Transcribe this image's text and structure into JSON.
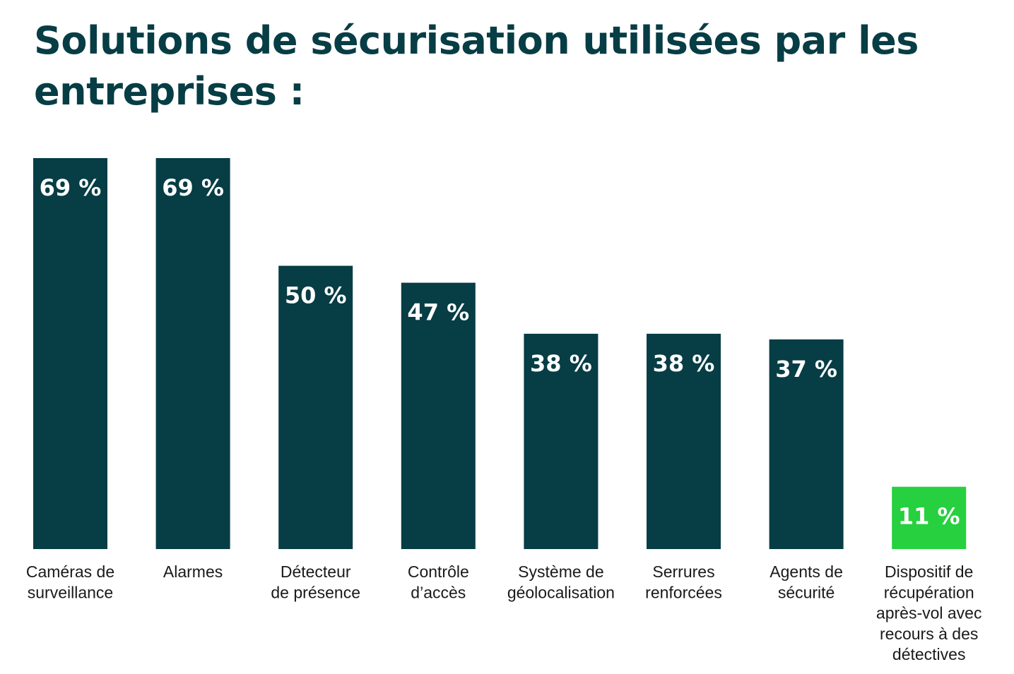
{
  "chart_data": {
    "type": "bar",
    "title": "Solutions de sécurisation utilisées par les entreprises :",
    "xlabel": "",
    "ylabel": "",
    "ylim": [
      0,
      69
    ],
    "grid": false,
    "categories": [
      [
        "Caméras de",
        "surveillance"
      ],
      [
        "Alarmes"
      ],
      [
        "Détecteur",
        "de présence"
      ],
      [
        "Contrôle",
        "d’accès"
      ],
      [
        "Système de",
        "géolocalisation"
      ],
      [
        "Serrures",
        "renforcées"
      ],
      [
        "Agents de",
        "sécurité"
      ],
      [
        "Dispositif de",
        "récupération",
        "après-vol avec",
        "recours à des",
        "détectives"
      ]
    ],
    "values": [
      69,
      69,
      50,
      47,
      38,
      38,
      37,
      11
    ],
    "value_labels": [
      "69 %",
      "69 %",
      "50 %",
      "47 %",
      "38 %",
      "38 %",
      "37 %",
      "11 %"
    ],
    "colors": {
      "default_bar": "#073d45",
      "highlight_bar": "#26d03f",
      "title": "#073d45",
      "label_text": "#1a1a1a"
    },
    "highlight_index": 7
  }
}
